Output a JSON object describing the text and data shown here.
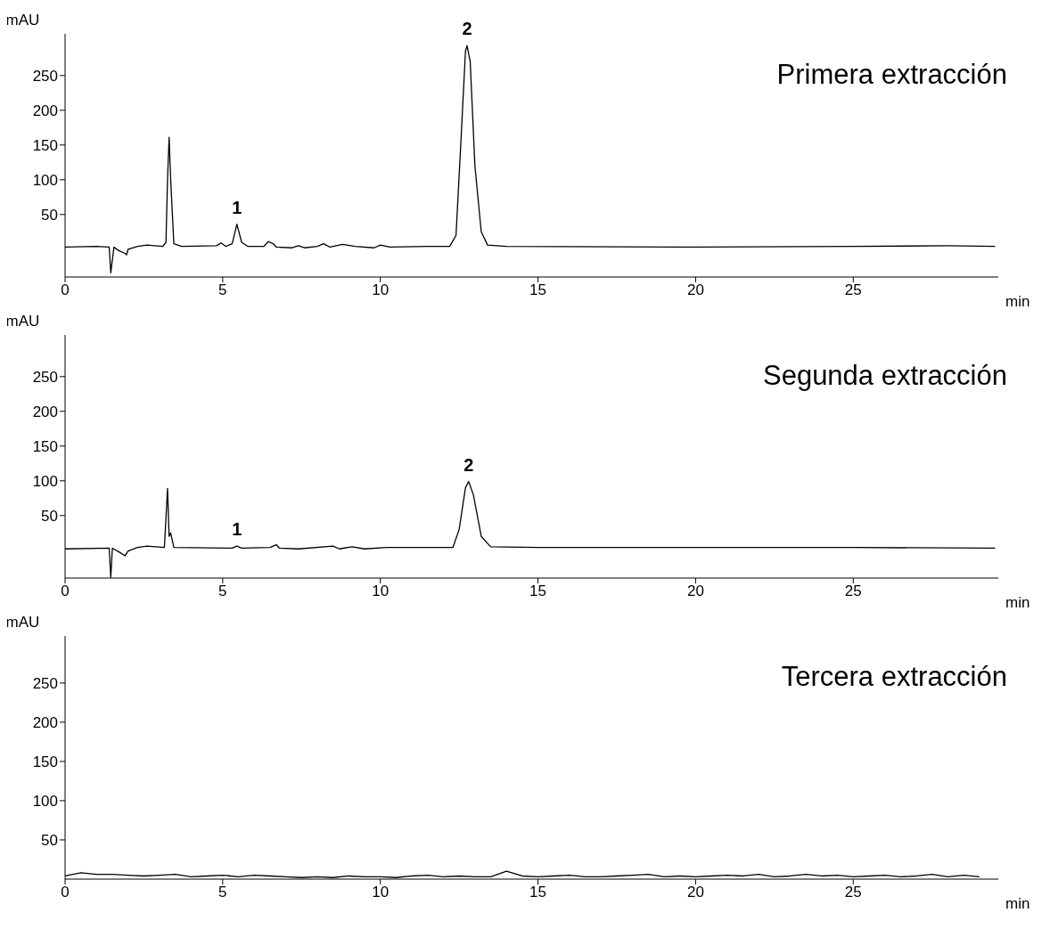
{
  "chart_data": [
    {
      "type": "line",
      "title": "Primera extracción",
      "xlabel": "min",
      "ylabel": "mAU",
      "xlim": [
        0,
        29.6
      ],
      "xticks": [
        0,
        5,
        10,
        15,
        20,
        25
      ],
      "ylim": [
        -40,
        310
      ],
      "yticks": [
        50,
        100,
        150,
        200,
        250
      ],
      "x": [
        0,
        1.0,
        1.4,
        1.45,
        1.55,
        1.7,
        1.9,
        1.95,
        2.0,
        2.3,
        2.6,
        3.1,
        3.2,
        3.25,
        3.3,
        3.35,
        3.45,
        3.7,
        4.8,
        4.95,
        5.1,
        5.3,
        5.45,
        5.6,
        5.8,
        6.3,
        6.45,
        6.6,
        6.7,
        7.2,
        7.4,
        7.6,
        8.0,
        8.2,
        8.4,
        8.8,
        9.2,
        9.8,
        10.0,
        10.3,
        11.5,
        12.2,
        12.4,
        12.55,
        12.7,
        12.75,
        12.85,
        13.0,
        13.2,
        13.4,
        14,
        20,
        25,
        28,
        29.5
      ],
      "series": [
        {
          "color": "#000000",
          "values": [
            3,
            4,
            3,
            -34,
            3,
            -2,
            -6,
            -8,
            0,
            4,
            6,
            4,
            10,
            100,
            161,
            100,
            8,
            4,
            5,
            9,
            4,
            8,
            36,
            10,
            4,
            4,
            11,
            8,
            3,
            2,
            5,
            2,
            4,
            8,
            3,
            7,
            4,
            2,
            6,
            3,
            4,
            4,
            20,
            150,
            285,
            293,
            270,
            120,
            25,
            6,
            4,
            3,
            4,
            5,
            4
          ]
        }
      ],
      "annotations": [
        {
          "text": "1",
          "x": 5.45,
          "y": 36
        },
        {
          "text": "2",
          "x": 12.75,
          "y": 293
        }
      ]
    },
    {
      "type": "line",
      "title": "Segunda extracción",
      "xlabel": "min",
      "ylabel": "mAU",
      "xlim": [
        0,
        29.6
      ],
      "xticks": [
        0,
        5,
        10,
        15,
        20,
        25
      ],
      "ylim": [
        -40,
        310
      ],
      "yticks": [
        50,
        100,
        150,
        200,
        250
      ],
      "x": [
        0,
        1.4,
        1.45,
        1.5,
        1.7,
        1.9,
        2.0,
        2.3,
        2.6,
        3.15,
        3.25,
        3.3,
        3.35,
        3.45,
        5.3,
        5.45,
        5.6,
        6.5,
        6.7,
        6.8,
        7.4,
        8.5,
        8.7,
        9.1,
        9.5,
        10.2,
        12.3,
        12.5,
        12.7,
        12.8,
        12.95,
        13.2,
        13.5,
        15,
        20,
        25,
        29.5
      ],
      "series": [
        {
          "color": "#000000",
          "values": [
            2,
            3,
            -39,
            3,
            -2,
            -8,
            -1,
            4,
            6,
            4,
            89,
            20,
            25,
            4,
            3,
            6,
            3,
            4,
            8,
            3,
            2,
            6,
            2,
            5,
            2,
            4,
            4,
            30,
            90,
            99,
            80,
            20,
            5,
            4,
            4,
            4,
            3
          ]
        }
      ],
      "annotations": [
        {
          "text": "1",
          "x": 5.45,
          "y": 6
        },
        {
          "text": "2",
          "x": 12.8,
          "y": 99
        }
      ]
    },
    {
      "type": "line",
      "title": "Tercera extracción",
      "xlabel": "min",
      "ylabel": "mAU",
      "xlim": [
        0,
        29.6
      ],
      "xticks": [
        0,
        5,
        10,
        15,
        20,
        25
      ],
      "ylim": [
        0,
        310
      ],
      "yticks": [
        50,
        100,
        150,
        200,
        250
      ],
      "x": [
        0,
        0.5,
        1,
        1.5,
        2,
        2.5,
        3,
        3.5,
        4,
        4.5,
        5,
        5.5,
        6,
        6.5,
        7,
        7.5,
        8,
        8.5,
        9,
        9.5,
        10,
        10.5,
        11,
        11.5,
        12,
        12.5,
        13,
        13.5,
        14,
        14.5,
        15,
        15.5,
        16,
        16.5,
        17,
        17.5,
        18,
        18.5,
        19,
        19.5,
        20,
        20.5,
        21,
        21.5,
        22,
        22.5,
        23,
        23.5,
        24,
        24.5,
        25,
        25.5,
        26,
        26.5,
        27,
        27.5,
        28,
        28.5,
        29
      ],
      "series": [
        {
          "color": "#000000",
          "values": [
            4,
            8,
            6,
            6,
            5,
            4,
            5,
            6,
            3,
            4,
            5,
            3,
            5,
            4,
            3,
            2,
            3,
            2,
            4,
            3,
            3,
            2,
            4,
            5,
            3,
            4,
            3,
            3,
            10,
            4,
            3,
            4,
            5,
            3,
            3,
            4,
            5,
            6,
            3,
            4,
            3,
            4,
            5,
            4,
            6,
            3,
            4,
            6,
            4,
            5,
            3,
            4,
            5,
            3,
            4,
            6,
            3,
            5,
            3
          ]
        }
      ]
    }
  ]
}
